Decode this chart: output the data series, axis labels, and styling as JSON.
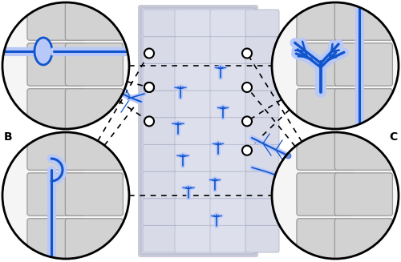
{
  "fig_width": 5.0,
  "fig_height": 3.27,
  "dpi": 100,
  "bg_color": "#ffffff",
  "cell_fill_dark": "#c8c8c8",
  "cell_fill_mid": "#d5d5d5",
  "cell_fill_light": "#e0e0e0",
  "cell_edge": "#999999",
  "cell_wall_color": "#b0b0b0",
  "root_bg": "#dde0ec",
  "root_edge": "#c0c4d8",
  "hypha_blue": "#1155cc",
  "hypha_light": "#b8c8f8",
  "hypha_mid": "#7090e0",
  "dot_color": "#8899cc",
  "label_fontsize": 10,
  "label_fontweight": "bold",
  "panel_r": 0.148,
  "panel_lw": 2.0,
  "dot_lw": 1.2,
  "small_circle_r": 0.018
}
